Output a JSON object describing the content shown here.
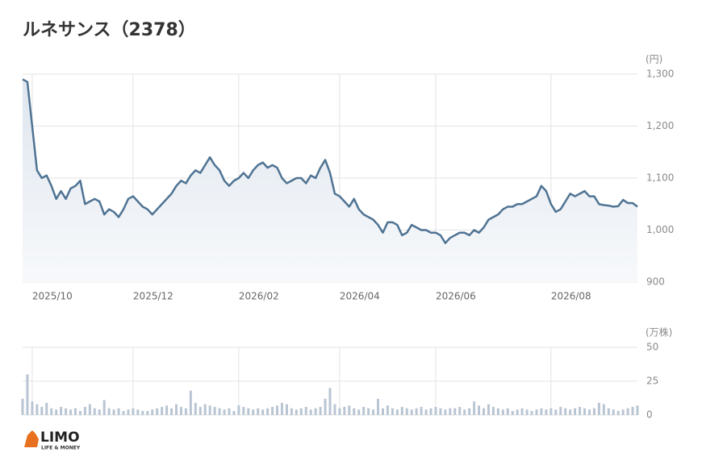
{
  "title": "ルネサンス（2378）",
  "logo": {
    "name": "LIMO",
    "tagline": "LIFE & MONEY"
  },
  "chart_data": [
    {
      "type": "line",
      "unit": "(円)",
      "color": "#4f7393",
      "grid": true,
      "categories": [
        null,
        null,
        "2025/10",
        null,
        null,
        null,
        null,
        null,
        null,
        null,
        null,
        null,
        null,
        null,
        null,
        null,
        null,
        null,
        null,
        null,
        null,
        null,
        null,
        "2025/12",
        null,
        null,
        null,
        null,
        null,
        null,
        null,
        null,
        null,
        null,
        null,
        null,
        null,
        null,
        null,
        null,
        null,
        null,
        null,
        null,
        null,
        "2026/02",
        null,
        null,
        null,
        null,
        null,
        null,
        null,
        null,
        null,
        null,
        null,
        null,
        null,
        null,
        null,
        null,
        null,
        null,
        null,
        null,
        "2026/04",
        null,
        null,
        null,
        null,
        null,
        null,
        null,
        null,
        null,
        null,
        null,
        null,
        null,
        null,
        null,
        null,
        null,
        null,
        null,
        "2026/06",
        null,
        null,
        null,
        null,
        null,
        null,
        null,
        null,
        null,
        null,
        null,
        null,
        null,
        null,
        null,
        null,
        null,
        null,
        null,
        null,
        null,
        null,
        null,
        "2026/08",
        null,
        null,
        null,
        null,
        null,
        null,
        null,
        null,
        null,
        null,
        null,
        null,
        null,
        null,
        null,
        null,
        null,
        null
      ],
      "series": [
        {
          "values": [
            1290,
            1285,
            1200,
            1115,
            1100,
            1105,
            1085,
            1060,
            1075,
            1060,
            1080,
            1085,
            1095,
            1050,
            1055,
            1060,
            1055,
            1030,
            1040,
            1035,
            1025,
            1040,
            1060,
            1065,
            1055,
            1045,
            1040,
            1030,
            1040,
            1050,
            1060,
            1070,
            1085,
            1095,
            1090,
            1105,
            1115,
            1110,
            1125,
            1140,
            1125,
            1115,
            1095,
            1085,
            1095,
            1100,
            1110,
            1100,
            1115,
            1125,
            1130,
            1120,
            1125,
            1120,
            1100,
            1090,
            1095,
            1100,
            1100,
            1090,
            1105,
            1100,
            1120,
            1135,
            1110,
            1070,
            1065,
            1055,
            1045,
            1060,
            1040,
            1030,
            1025,
            1020,
            1010,
            995,
            1015,
            1015,
            1010,
            990,
            995,
            1010,
            1005,
            1000,
            1000,
            995,
            995,
            990,
            975,
            985,
            990,
            995,
            995,
            990,
            1000,
            995,
            1005,
            1020,
            1025,
            1030,
            1040,
            1045,
            1045,
            1050,
            1050,
            1055,
            1060,
            1065,
            1085,
            1075,
            1050,
            1035,
            1040,
            1055,
            1070,
            1065,
            1070,
            1075,
            1065,
            1065,
            1050,
            1048,
            1047,
            1045,
            1046,
            1058,
            1052,
            1052,
            1045
          ]
        }
      ],
      "ylim": [
        900,
        1300
      ],
      "yticks": [
        {
          "value": 900,
          "label": "900"
        },
        {
          "value": 1000,
          "label": "1,000"
        },
        {
          "value": 1100,
          "label": "1,100"
        },
        {
          "value": 1200,
          "label": "1,200"
        },
        {
          "value": 1300,
          "label": "1,300"
        }
      ]
    },
    {
      "type": "bar",
      "unit": "(万株)",
      "color": "#b9c5d3",
      "grid": true,
      "values": [
        12,
        30,
        10,
        8,
        6,
        9,
        5,
        4,
        6,
        5,
        4,
        5,
        3,
        6,
        8,
        5,
        4,
        11,
        5,
        4,
        5,
        3,
        4,
        5,
        4,
        3,
        3,
        4,
        5,
        6,
        7,
        5,
        8,
        6,
        5,
        18,
        9,
        6,
        8,
        7,
        6,
        5,
        4,
        5,
        3,
        7,
        6,
        5,
        4,
        5,
        4,
        5,
        6,
        7,
        9,
        8,
        5,
        4,
        5,
        6,
        4,
        5,
        6,
        12,
        20,
        8,
        5,
        6,
        7,
        5,
        4,
        6,
        5,
        4,
        12,
        5,
        7,
        5,
        4,
        6,
        5,
        4,
        5,
        6,
        4,
        5,
        6,
        5,
        4,
        5,
        5,
        6,
        4,
        5,
        10,
        7,
        5,
        8,
        6,
        5,
        4,
        5,
        3,
        4,
        5,
        4,
        3,
        4,
        5,
        4,
        5,
        4,
        6,
        5,
        4,
        5,
        6,
        5,
        4,
        5,
        9,
        8,
        5,
        4,
        3,
        4,
        5,
        6,
        7
      ],
      "ylim": [
        0,
        50
      ],
      "yticks": [
        0,
        25,
        50
      ]
    }
  ]
}
